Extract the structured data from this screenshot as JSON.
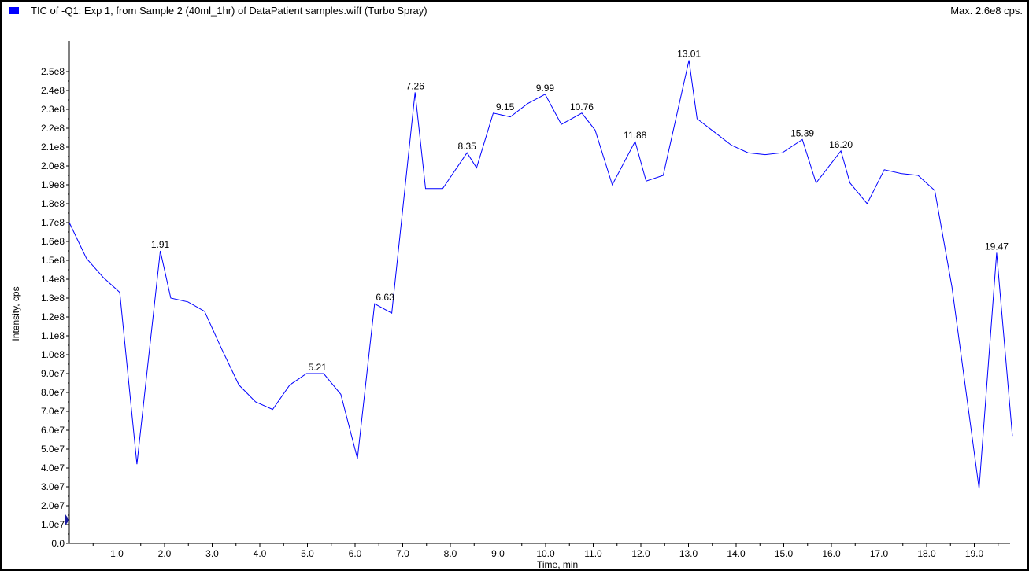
{
  "header": {
    "title": "TIC of -Q1: Exp 1, from Sample 2 (40ml_1hr) of DataPatient samples.wiff (Turbo Spray)",
    "max_label": "Max. 2.6e8 cps."
  },
  "colors": {
    "series": "#0000ff",
    "axis": "#000000",
    "background": "#ffffff"
  },
  "chart_data": {
    "type": "line",
    "title": "TIC of -Q1: Exp 1, from Sample 2 (40ml_1hr) of DataPatient samples.wiff (Turbo Spray)",
    "xlabel": "Time, min",
    "ylabel": "Intensity, cps",
    "xlim": [
      0,
      19.8
    ],
    "ylim": [
      0,
      26000000
    ],
    "grid": false,
    "legend": "top-left",
    "x_ticks": [
      "1.0",
      "2.0",
      "3.0",
      "4.0",
      "5.0",
      "6.0",
      "7.0",
      "8.0",
      "9.0",
      "10.0",
      "11.0",
      "12.0",
      "13.0",
      "14.0",
      "15.0",
      "16.0",
      "17.0",
      "18.0",
      "19.0"
    ],
    "y_ticks": [
      "0.0",
      "1.0e7",
      "2.0e7",
      "3.0e7",
      "4.0e7",
      "5.0e7",
      "6.0e7",
      "7.0e7",
      "8.0e7",
      "9.0e7",
      "1.0e8",
      "1.1e8",
      "1.2e8",
      "1.3e8",
      "1.4e8",
      "1.5e8",
      "1.6e8",
      "1.7e8",
      "1.8e8",
      "1.9e8",
      "2.0e8",
      "2.1e8",
      "2.2e8",
      "2.3e8",
      "2.4e8",
      "2.5e8"
    ],
    "series": [
      {
        "x": [
          0.0,
          0.36,
          0.71,
          1.06,
          1.42,
          1.91,
          2.13,
          2.49,
          2.84,
          3.2,
          3.56,
          3.91,
          4.27,
          4.63,
          4.98,
          5.34,
          5.7,
          6.05,
          6.41,
          6.77,
          7.26,
          7.48,
          7.84,
          8.35,
          8.55,
          8.9,
          9.26,
          9.62,
          9.99,
          10.33,
          10.76,
          11.04,
          11.4,
          11.88,
          12.11,
          12.47,
          13.01,
          13.18,
          13.54,
          13.9,
          14.25,
          14.61,
          14.97,
          15.39,
          15.68,
          16.2,
          16.39,
          16.75,
          17.11,
          17.46,
          17.82,
          18.17,
          18.53,
          19.1,
          19.47,
          19.8
        ],
        "y": [
          170000000,
          151000000,
          141000000,
          133000000,
          42000000,
          155000000,
          130000000,
          128000000,
          123000000,
          103000000,
          84000000,
          75000000,
          71000000,
          84000000,
          90000000,
          90000000,
          79000000,
          45000000,
          127000000,
          122000000,
          239000000,
          188000000,
          188000000,
          207000000,
          199000000,
          228000000,
          226000000,
          233000000,
          238000000,
          222000000,
          228000000,
          219000000,
          190000000,
          213000000,
          192000000,
          195000000,
          256000000,
          225000000,
          218000000,
          211000000,
          207000000,
          206000000,
          207000000,
          214000000,
          191000000,
          208000000,
          191000000,
          180000000,
          198000000,
          196000000,
          195000000,
          187000000,
          136000000,
          29000000,
          154000000,
          57000000
        ]
      }
    ],
    "annotations": [
      {
        "x": 1.91,
        "y": 155000000,
        "text": "1.91"
      },
      {
        "x": 5.21,
        "y": 90000000,
        "text": "5.21"
      },
      {
        "x": 6.63,
        "y": 127000000,
        "text": "6.63"
      },
      {
        "x": 7.26,
        "y": 239000000,
        "text": "7.26"
      },
      {
        "x": 8.35,
        "y": 207000000,
        "text": "8.35"
      },
      {
        "x": 9.15,
        "y": 228000000,
        "text": "9.15"
      },
      {
        "x": 9.99,
        "y": 238000000,
        "text": "9.99"
      },
      {
        "x": 10.76,
        "y": 228000000,
        "text": "10.76"
      },
      {
        "x": 11.88,
        "y": 213000000,
        "text": "11.88"
      },
      {
        "x": 13.01,
        "y": 256000000,
        "text": "13.01"
      },
      {
        "x": 15.39,
        "y": 214000000,
        "text": "15.39"
      },
      {
        "x": 16.2,
        "y": 208000000,
        "text": "16.20"
      },
      {
        "x": 19.47,
        "y": 154000000,
        "text": "19.47"
      }
    ]
  }
}
